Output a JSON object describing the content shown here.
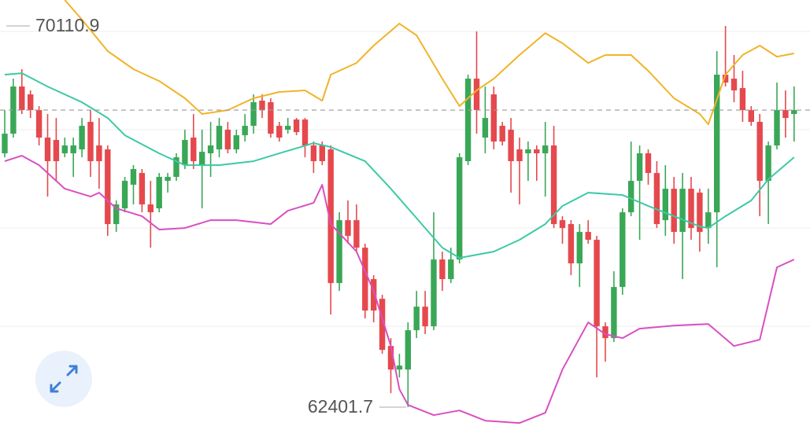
{
  "chart_data": {
    "type": "candlestick",
    "up_color": "#3aa757",
    "down_color": "#e5484d",
    "ylim": [
      61797.8,
      70635.4
    ],
    "grid_lines": [
      69999,
      68012,
      66024,
      64037
    ],
    "last_price_line": true,
    "high_marker": 70110.9,
    "low_marker": 62401.7,
    "open": [
      67535,
      67932,
      68886,
      68727,
      68409,
      67853,
      67805,
      67535,
      67535,
      67614,
      68171,
      67694,
      67614,
      66104,
      66422,
      66899,
      67137,
      66501,
      66422,
      66978,
      67058,
      67296,
      67853,
      67296,
      67535,
      67614,
      68012,
      67614,
      67900,
      68091,
      68600,
      68568,
      68091,
      68012,
      68218,
      68218,
      67694,
      67694,
      67614,
      64911,
      66183,
      66183,
      65627,
      64991,
      64593,
      63639,
      63162,
      63162,
      63957,
      64434,
      64037,
      65388,
      64991,
      65388,
      67376,
      69045,
      67853,
      68727,
      68091,
      68012,
      67614,
      67535,
      67614,
      67535,
      67694,
      66183,
      66104,
      65309,
      65945,
      65786,
      64037,
      63798,
      64832,
      66342,
      66978,
      67535,
      67137,
      66183,
      66819,
      65945,
      66819,
      66740,
      66024,
      66342,
      69125,
      69045,
      68854,
      68409,
      68171,
      66978,
      67694,
      68409,
      68330
    ],
    "high": [
      68409,
      69045,
      69236,
      68807,
      68489,
      68330,
      68250,
      67853,
      67853,
      68250,
      68409,
      68250,
      67694,
      66581,
      67058,
      67296,
      67217,
      66978,
      67137,
      67137,
      67535,
      68012,
      68330,
      68012,
      68171,
      68250,
      68171,
      68012,
      68330,
      68727,
      68727,
      68648,
      68171,
      68250,
      68250,
      68250,
      67773,
      67773,
      67694,
      66342,
      66581,
      66501,
      65706,
      65070,
      64673,
      63798,
      63480,
      64116,
      64752,
      64752,
      66342,
      65547,
      65627,
      67535,
      69125,
      69999,
      68886,
      68886,
      68171,
      68250,
      67853,
      67773,
      67694,
      68171,
      68091,
      66263,
      66183,
      66104,
      66183,
      65865,
      64116,
      65150,
      66422,
      67773,
      67694,
      67614,
      67376,
      67296,
      67058,
      67137,
      67058,
      66819,
      66819,
      69602,
      70110.9,
      69522,
      69204,
      68489,
      68330,
      67773,
      68966,
      68807,
      68886
    ],
    "low": [
      67455,
      67853,
      68330,
      68250,
      67694,
      66660,
      66978,
      67455,
      67058,
      67455,
      67058,
      66819,
      65865,
      65945,
      66342,
      66501,
      66342,
      65627,
      66342,
      66740,
      66978,
      67217,
      67217,
      66422,
      67058,
      67455,
      67535,
      67535,
      67773,
      67932,
      68250,
      67853,
      67773,
      67932,
      67900,
      67455,
      67137,
      67296,
      64275,
      64752,
      65706,
      65547,
      64196,
      64116,
      63480,
      62685,
      63003,
      62401.7,
      63798,
      63878,
      63957,
      64752,
      64911,
      65309,
      67296,
      67932,
      67535,
      67614,
      67694,
      66740,
      66501,
      66978,
      66978,
      66660,
      66024,
      65706,
      65070,
      64832,
      65706,
      63003,
      63321,
      63719,
      64673,
      66263,
      65786,
      66899,
      66024,
      65865,
      65706,
      64991,
      65786,
      65547,
      65706,
      65229,
      68886,
      68568,
      68171,
      68091,
      66263,
      66104,
      67614,
      67853,
      67773
    ],
    "close": [
      67932,
      68886,
      68409,
      68409,
      67853,
      67376,
      67376,
      67694,
      67694,
      68091,
      67376,
      67376,
      66104,
      66501,
      66978,
      67217,
      66501,
      66342,
      67058,
      67058,
      67455,
      67805,
      67376,
      67566,
      67694,
      68091,
      67614,
      67900,
      68091,
      68568,
      68409,
      67932,
      67853,
      68091,
      67964,
      67694,
      67376,
      67376,
      64911,
      66183,
      65865,
      65627,
      64355,
      64355,
      63560,
      63162,
      63242,
      63957,
      64434,
      64037,
      65388,
      64991,
      65388,
      67455,
      69045,
      68409,
      68250,
      67773,
      67773,
      67376,
      67376,
      67614,
      67535,
      67694,
      66104,
      66024,
      65309,
      65945,
      65786,
      64037,
      63798,
      64832,
      66342,
      66978,
      67535,
      67137,
      66104,
      66819,
      65945,
      66819,
      66024,
      65945,
      66342,
      69125,
      68966,
      68807,
      68409,
      68171,
      66978,
      67694,
      68409,
      68250,
      68409
    ],
    "bands": [
      {
        "color": "#f0b429",
        "x": [
          7,
          9,
          12,
          15,
          18,
          21,
          23,
          26,
          29,
          32,
          35,
          37,
          38,
          41,
          43,
          46,
          48,
          51,
          53,
          55,
          57,
          60,
          63,
          65,
          68,
          70,
          73,
          75,
          78,
          81,
          82,
          84,
          86,
          88,
          90,
          92
        ],
        "values": [
          70635,
          70238,
          69602,
          69236,
          68997,
          68648,
          68330,
          68409,
          68648,
          68775,
          68807,
          68600,
          69125,
          69363,
          69713,
          70158,
          69920,
          69045,
          68489,
          68807,
          69045,
          69522,
          69967,
          69761,
          69363,
          69522,
          69522,
          69204,
          68648,
          68330,
          68123,
          69125,
          69522,
          69713,
          69490,
          69554
        ]
      },
      {
        "color": "#3cc9a6",
        "x": [
          0,
          2,
          5,
          9,
          12,
          14,
          18,
          21,
          25,
          29,
          32,
          36,
          38,
          42,
          45,
          49,
          51,
          53,
          57,
          60,
          63,
          65,
          68,
          72,
          75,
          78,
          81,
          82,
          84,
          87,
          89,
          92
        ],
        "values": [
          69125,
          69156,
          68886,
          68568,
          68250,
          67900,
          67535,
          67296,
          67296,
          67376,
          67535,
          67741,
          67662,
          67376,
          66819,
          66024,
          65627,
          65420,
          65547,
          65786,
          66104,
          66469,
          66740,
          66692,
          66469,
          66263,
          66056,
          66024,
          66263,
          66581,
          67010,
          67455
        ]
      },
      {
        "color": "#d94fc1",
        "x": [
          0,
          2,
          4,
          7,
          10,
          11,
          13,
          16,
          18,
          21,
          24,
          27,
          31,
          33,
          36,
          37,
          38,
          41,
          43,
          45,
          46,
          47,
          50,
          53,
          56,
          60,
          63,
          65,
          68,
          70,
          72,
          74,
          78,
          82,
          85,
          88,
          90,
          92
        ],
        "values": [
          67376,
          67487,
          67296,
          66819,
          66660,
          66740,
          66422,
          66263,
          65992,
          66024,
          66183,
          66183,
          66104,
          66374,
          66533,
          66899,
          66104,
          65547,
          64752,
          63639,
          62764,
          62446,
          62240,
          62335,
          62128,
          62081,
          62287,
          63162,
          64116,
          63878,
          63798,
          63989,
          64052,
          64084,
          63639,
          63766,
          65229,
          65388
        ]
      }
    ]
  }
}
